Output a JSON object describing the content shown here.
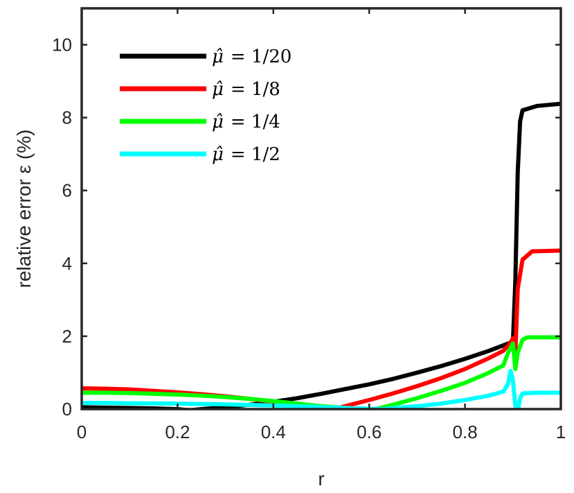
{
  "chart_data": {
    "type": "line",
    "title": "",
    "xlabel": "r",
    "ylabel": "relative error ε (%)",
    "xlim": [
      0,
      1
    ],
    "ylim": [
      0,
      11
    ],
    "xticks": [
      0,
      0.2,
      0.4,
      0.6,
      0.8,
      1
    ],
    "xtick_labels": [
      "0",
      "0.2",
      "0.4",
      "0.6",
      "0.8",
      "1"
    ],
    "yticks": [
      0,
      2,
      4,
      6,
      8,
      10
    ],
    "ytick_labels": [
      "0",
      "2",
      "4",
      "6",
      "8",
      "10"
    ],
    "grid": false,
    "legend_position": "top-left",
    "series": [
      {
        "name": "μ̂ = 1/20",
        "legend_symbol": "μ̂",
        "legend_rhs": "= 1/20",
        "color": "#000000",
        "points": [
          [
            0,
            0.05
          ],
          [
            0.05,
            0.04
          ],
          [
            0.1,
            0.03
          ],
          [
            0.15,
            0.02
          ],
          [
            0.2,
            0.0
          ],
          [
            0.225,
            -0.03
          ],
          [
            0.25,
            0.0
          ],
          [
            0.3,
            0.05
          ],
          [
            0.35,
            0.12
          ],
          [
            0.4,
            0.2
          ],
          [
            0.45,
            0.3
          ],
          [
            0.5,
            0.42
          ],
          [
            0.55,
            0.55
          ],
          [
            0.6,
            0.68
          ],
          [
            0.65,
            0.83
          ],
          [
            0.7,
            1.0
          ],
          [
            0.75,
            1.18
          ],
          [
            0.8,
            1.38
          ],
          [
            0.85,
            1.6
          ],
          [
            0.88,
            1.75
          ],
          [
            0.9,
            1.85
          ],
          [
            0.905,
            3.5
          ],
          [
            0.91,
            6.5
          ],
          [
            0.915,
            7.9
          ],
          [
            0.92,
            8.2
          ],
          [
            0.95,
            8.32
          ],
          [
            1.0,
            8.38
          ]
        ]
      },
      {
        "name": "μ̂ = 1/8",
        "legend_symbol": "μ̂",
        "legend_rhs": "= 1/8",
        "color": "#ff0000",
        "points": [
          [
            0,
            0.57
          ],
          [
            0.05,
            0.56
          ],
          [
            0.1,
            0.54
          ],
          [
            0.15,
            0.5
          ],
          [
            0.2,
            0.46
          ],
          [
            0.25,
            0.41
          ],
          [
            0.3,
            0.35
          ],
          [
            0.35,
            0.28
          ],
          [
            0.4,
            0.2
          ],
          [
            0.45,
            0.1
          ],
          [
            0.5,
            0.02
          ],
          [
            0.52,
            -0.03
          ],
          [
            0.55,
            0.08
          ],
          [
            0.6,
            0.25
          ],
          [
            0.65,
            0.43
          ],
          [
            0.7,
            0.63
          ],
          [
            0.75,
            0.85
          ],
          [
            0.8,
            1.1
          ],
          [
            0.85,
            1.4
          ],
          [
            0.88,
            1.6
          ],
          [
            0.895,
            1.82
          ],
          [
            0.9,
            1.95
          ],
          [
            0.905,
            1.5
          ],
          [
            0.91,
            3.3
          ],
          [
            0.92,
            4.1
          ],
          [
            0.94,
            4.33
          ],
          [
            1.0,
            4.35
          ]
        ]
      },
      {
        "name": "μ̂ = 1/4",
        "legend_symbol": "μ̂",
        "legend_rhs": "= 1/4",
        "color": "#00ff00",
        "points": [
          [
            0,
            0.45
          ],
          [
            0.05,
            0.45
          ],
          [
            0.1,
            0.44
          ],
          [
            0.15,
            0.42
          ],
          [
            0.2,
            0.4
          ],
          [
            0.25,
            0.37
          ],
          [
            0.3,
            0.33
          ],
          [
            0.35,
            0.28
          ],
          [
            0.4,
            0.22
          ],
          [
            0.45,
            0.15
          ],
          [
            0.5,
            0.08
          ],
          [
            0.55,
            0.03
          ],
          [
            0.6,
            -0.02
          ],
          [
            0.62,
            0.02
          ],
          [
            0.65,
            0.12
          ],
          [
            0.7,
            0.3
          ],
          [
            0.75,
            0.5
          ],
          [
            0.8,
            0.72
          ],
          [
            0.85,
            1.0
          ],
          [
            0.88,
            1.2
          ],
          [
            0.89,
            1.55
          ],
          [
            0.9,
            1.8
          ],
          [
            0.905,
            1.1
          ],
          [
            0.91,
            1.55
          ],
          [
            0.92,
            1.9
          ],
          [
            0.93,
            1.97
          ],
          [
            1.0,
            1.97
          ]
        ]
      },
      {
        "name": "μ̂ = 1/2",
        "legend_symbol": "μ̂",
        "legend_rhs": "= 1/2",
        "color": "#00ffff",
        "points": [
          [
            0,
            0.17
          ],
          [
            0.05,
            0.17
          ],
          [
            0.1,
            0.16
          ],
          [
            0.2,
            0.15
          ],
          [
            0.3,
            0.13
          ],
          [
            0.4,
            0.1
          ],
          [
            0.5,
            0.06
          ],
          [
            0.55,
            0.03
          ],
          [
            0.6,
            0.01
          ],
          [
            0.63,
            0.0
          ],
          [
            0.65,
            0.03
          ],
          [
            0.7,
            0.08
          ],
          [
            0.75,
            0.15
          ],
          [
            0.8,
            0.25
          ],
          [
            0.85,
            0.37
          ],
          [
            0.88,
            0.48
          ],
          [
            0.89,
            0.7
          ],
          [
            0.895,
            1.05
          ],
          [
            0.9,
            0.8
          ],
          [
            0.905,
            0.1
          ],
          [
            0.91,
            -0.05
          ],
          [
            0.915,
            0.3
          ],
          [
            0.92,
            0.43
          ],
          [
            0.95,
            0.45
          ],
          [
            1.0,
            0.45
          ]
        ]
      }
    ]
  }
}
